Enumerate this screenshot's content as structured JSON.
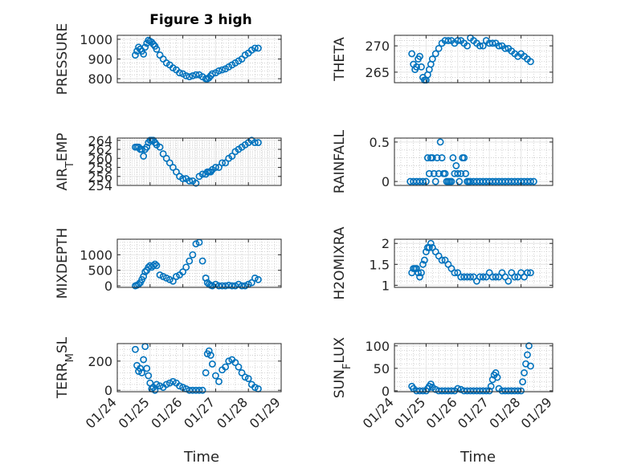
{
  "figure": {
    "title": "Figure 3 high",
    "marker_color": "#0072bd",
    "xlabel_left": "Time",
    "xlabel_right": "Time"
  },
  "chart_data": [
    {
      "type": "scatter",
      "name": "PRESSURE",
      "ylabel": "PRESSURE",
      "xlim": [
        0,
        5
      ],
      "ylim": [
        780,
        1020
      ],
      "yticks": [
        800,
        900,
        1000
      ],
      "xticks": [
        "01/24",
        "01/25",
        "01/26",
        "01/27",
        "01/28",
        "01/29"
      ],
      "x": [
        0.55,
        0.6,
        0.65,
        0.7,
        0.75,
        0.8,
        0.85,
        0.9,
        0.95,
        1.0,
        1.05,
        1.1,
        1.15,
        1.2,
        1.3,
        1.4,
        1.5,
        1.6,
        1.7,
        1.8,
        1.9,
        2.0,
        2.1,
        2.2,
        2.3,
        2.4,
        2.5,
        2.6,
        2.7,
        2.75,
        2.8,
        2.85,
        2.9,
        3.0,
        3.1,
        3.2,
        3.3,
        3.4,
        3.5,
        3.6,
        3.7,
        3.8,
        3.9,
        4.0,
        4.1,
        4.2,
        4.3
      ],
      "y": [
        920,
        940,
        960,
        950,
        940,
        925,
        960,
        980,
        995,
        990,
        985,
        975,
        965,
        950,
        920,
        900,
        880,
        870,
        855,
        845,
        830,
        825,
        815,
        810,
        815,
        820,
        820,
        810,
        800,
        800,
        805,
        815,
        825,
        830,
        840,
        845,
        850,
        860,
        870,
        880,
        890,
        900,
        920,
        930,
        945,
        955,
        955
      ]
    },
    {
      "type": "scatter",
      "name": "THETA",
      "ylabel": "THETA",
      "xlim": [
        0,
        5
      ],
      "ylim": [
        263,
        272
      ],
      "yticks": [
        265,
        270
      ],
      "xticks": [
        "01/24",
        "01/25",
        "01/26",
        "01/27",
        "01/28",
        "01/29"
      ],
      "x": [
        0.55,
        0.6,
        0.65,
        0.7,
        0.75,
        0.8,
        0.85,
        0.9,
        0.95,
        1.0,
        1.05,
        1.1,
        1.15,
        1.2,
        1.3,
        1.4,
        1.5,
        1.6,
        1.7,
        1.8,
        1.9,
        2.0,
        2.1,
        2.2,
        2.3,
        2.4,
        2.5,
        2.6,
        2.7,
        2.8,
        2.9,
        3.0,
        3.1,
        3.2,
        3.3,
        3.4,
        3.5,
        3.6,
        3.7,
        3.8,
        3.9,
        4.0,
        4.1,
        4.2,
        4.3
      ],
      "y": [
        268.5,
        266.5,
        265.5,
        266,
        267.5,
        268,
        266,
        264,
        263.5,
        263.5,
        264.5,
        265.5,
        266.5,
        267.5,
        268.5,
        269.5,
        270.5,
        271,
        271,
        271,
        270.5,
        271,
        271,
        270.5,
        270,
        271.5,
        271,
        270.5,
        270,
        270,
        271,
        270.5,
        270.5,
        270.5,
        270,
        270,
        269.5,
        269.5,
        269,
        268.5,
        268,
        268.5,
        268,
        267.5,
        267
      ]
    },
    {
      "type": "scatter",
      "name": "AIR_TEMP",
      "ylabel": "AIR_TEMP",
      "xlim": [
        0,
        5
      ],
      "ylim": [
        254,
        264.5
      ],
      "yticks": [
        254,
        256,
        258,
        260,
        262,
        264
      ],
      "xticks": [
        "01/24",
        "01/25",
        "01/26",
        "01/27",
        "01/28",
        "01/29"
      ],
      "x": [
        0.55,
        0.6,
        0.65,
        0.7,
        0.75,
        0.8,
        0.85,
        0.9,
        0.95,
        1.0,
        1.05,
        1.1,
        1.15,
        1.2,
        1.3,
        1.4,
        1.5,
        1.6,
        1.7,
        1.8,
        1.9,
        2.0,
        2.1,
        2.2,
        2.3,
        2.4,
        2.5,
        2.6,
        2.7,
        2.75,
        2.8,
        2.85,
        2.9,
        3.0,
        3.1,
        3.2,
        3.3,
        3.4,
        3.5,
        3.6,
        3.7,
        3.8,
        3.9,
        4.0,
        4.1,
        4.2,
        4.3
      ],
      "y": [
        262.5,
        262.5,
        262.5,
        262,
        262,
        260.5,
        262,
        262.5,
        263.5,
        264,
        264,
        264,
        263.5,
        263,
        262.5,
        261,
        260,
        259,
        258,
        257,
        256,
        255.5,
        255.5,
        255,
        255,
        254.5,
        256,
        256.5,
        256.5,
        257,
        257,
        257,
        257.5,
        258,
        258,
        259,
        259,
        260,
        260.5,
        261.5,
        262,
        262.5,
        263,
        263.5,
        264,
        263.5,
        263.5
      ]
    },
    {
      "type": "scatter",
      "name": "RAINFALL",
      "ylabel": "RAINFALL",
      "xlim": [
        0,
        5
      ],
      "ylim": [
        -0.05,
        0.55
      ],
      "yticks": [
        0,
        0.5
      ],
      "xticks": [
        "01/24",
        "01/25",
        "01/26",
        "01/27",
        "01/28",
        "01/29"
      ],
      "x": [
        0.5,
        0.6,
        0.7,
        0.8,
        0.9,
        1.0,
        1.05,
        1.1,
        1.15,
        1.2,
        1.25,
        1.3,
        1.35,
        1.4,
        1.45,
        1.5,
        1.55,
        1.6,
        1.65,
        1.7,
        1.75,
        1.8,
        1.85,
        1.9,
        1.95,
        2.0,
        2.05,
        2.1,
        2.15,
        2.2,
        2.25,
        2.3,
        2.35,
        2.4,
        2.5,
        2.6,
        2.7,
        2.8,
        2.9,
        3.0,
        3.1,
        3.2,
        3.3,
        3.4,
        3.5,
        3.6,
        3.7,
        3.8,
        3.9,
        4.0,
        4.1,
        4.2,
        4.3,
        4.4
      ],
      "y": [
        0,
        0,
        0,
        0,
        0,
        0,
        0.3,
        0.1,
        0.3,
        0.3,
        0.1,
        0,
        0.3,
        0.1,
        0.5,
        0.3,
        0.1,
        0.1,
        0,
        0,
        0,
        0,
        0.3,
        0.1,
        0.2,
        0.1,
        0,
        0.1,
        0.3,
        0.3,
        0.1,
        0,
        0,
        0,
        0,
        0,
        0,
        0,
        0,
        0,
        0,
        0,
        0,
        0,
        0,
        0,
        0,
        0,
        0,
        0,
        0,
        0,
        0,
        0
      ]
    },
    {
      "type": "scatter",
      "name": "MIXDEPTH",
      "ylabel": "MIXDEPTH",
      "xlim": [
        0,
        5
      ],
      "ylim": [
        -50,
        1500
      ],
      "yticks": [
        0,
        500,
        1000
      ],
      "xticks": [
        "01/24",
        "01/25",
        "01/26",
        "01/27",
        "01/28",
        "01/29"
      ],
      "x": [
        0.55,
        0.6,
        0.65,
        0.7,
        0.75,
        0.8,
        0.85,
        0.9,
        0.95,
        1.0,
        1.05,
        1.1,
        1.15,
        1.2,
        1.3,
        1.4,
        1.5,
        1.6,
        1.7,
        1.8,
        1.9,
        2.0,
        2.1,
        2.2,
        2.3,
        2.4,
        2.5,
        2.6,
        2.7,
        2.75,
        2.8,
        2.85,
        2.9,
        3.0,
        3.1,
        3.2,
        3.3,
        3.4,
        3.5,
        3.6,
        3.7,
        3.8,
        3.9,
        4.0,
        4.1,
        4.2,
        4.3
      ],
      "y": [
        0,
        20,
        50,
        100,
        200,
        300,
        450,
        500,
        600,
        650,
        600,
        650,
        700,
        650,
        350,
        300,
        250,
        200,
        150,
        300,
        350,
        450,
        600,
        800,
        1000,
        1350,
        1400,
        800,
        250,
        100,
        50,
        20,
        0,
        50,
        0,
        0,
        0,
        20,
        0,
        0,
        50,
        0,
        0,
        50,
        100,
        250,
        200
      ]
    },
    {
      "type": "scatter",
      "name": "H2OMIXRA",
      "ylabel": "H2OMIXRA",
      "xlim": [
        0,
        5
      ],
      "ylim": [
        0.95,
        2.1
      ],
      "yticks": [
        1,
        1.5,
        2
      ],
      "xticks": [
        "01/24",
        "01/25",
        "01/26",
        "01/27",
        "01/28",
        "01/29"
      ],
      "x": [
        0.55,
        0.6,
        0.65,
        0.7,
        0.75,
        0.8,
        0.85,
        0.9,
        0.95,
        1.0,
        1.05,
        1.1,
        1.15,
        1.2,
        1.3,
        1.4,
        1.5,
        1.6,
        1.7,
        1.8,
        1.9,
        2.0,
        2.1,
        2.2,
        2.3,
        2.4,
        2.5,
        2.6,
        2.7,
        2.8,
        2.9,
        3.0,
        3.1,
        3.2,
        3.3,
        3.4,
        3.5,
        3.6,
        3.7,
        3.8,
        3.9,
        4.0,
        4.1,
        4.2,
        4.3
      ],
      "y": [
        1.3,
        1.4,
        1.4,
        1.4,
        1.3,
        1.2,
        1.3,
        1.5,
        1.6,
        1.8,
        1.9,
        1.9,
        2.0,
        1.9,
        1.8,
        1.7,
        1.6,
        1.6,
        1.5,
        1.4,
        1.3,
        1.3,
        1.2,
        1.2,
        1.2,
        1.2,
        1.2,
        1.1,
        1.2,
        1.2,
        1.2,
        1.3,
        1.2,
        1.2,
        1.2,
        1.3,
        1.2,
        1.1,
        1.3,
        1.2,
        1.2,
        1.3,
        1.2,
        1.3,
        1.3
      ]
    },
    {
      "type": "scatter",
      "name": "TERR_MSL",
      "ylabel": "TERR_MSL",
      "xlim": [
        0,
        5
      ],
      "ylim": [
        -10,
        320
      ],
      "yticks": [
        0,
        200
      ],
      "xticks": [
        "01/24",
        "01/25",
        "01/26",
        "01/27",
        "01/28",
        "01/29"
      ],
      "x": [
        0.55,
        0.6,
        0.65,
        0.7,
        0.75,
        0.8,
        0.85,
        0.9,
        0.95,
        1.0,
        1.05,
        1.1,
        1.15,
        1.2,
        1.3,
        1.4,
        1.5,
        1.6,
        1.7,
        1.8,
        1.9,
        2.0,
        2.1,
        2.2,
        2.3,
        2.4,
        2.5,
        2.6,
        2.7,
        2.75,
        2.8,
        2.85,
        2.9,
        3.0,
        3.1,
        3.2,
        3.3,
        3.4,
        3.5,
        3.6,
        3.7,
        3.8,
        3.9,
        4.0,
        4.1,
        4.2,
        4.3
      ],
      "y": [
        280,
        170,
        130,
        150,
        120,
        210,
        300,
        150,
        100,
        50,
        10,
        20,
        0,
        40,
        30,
        20,
        40,
        50,
        60,
        50,
        30,
        20,
        10,
        0,
        0,
        0,
        0,
        0,
        120,
        250,
        270,
        240,
        180,
        100,
        60,
        140,
        160,
        200,
        210,
        190,
        160,
        120,
        90,
        80,
        40,
        20,
        10
      ]
    },
    {
      "type": "scatter",
      "name": "SUN_FLUX",
      "ylabel": "SUN_FLUX",
      "xlim": [
        0,
        5
      ],
      "ylim": [
        -2,
        105
      ],
      "yticks": [
        0,
        50,
        100
      ],
      "xticks": [
        "01/24",
        "01/25",
        "01/26",
        "01/27",
        "01/28",
        "01/29"
      ],
      "x": [
        0.55,
        0.6,
        0.7,
        0.8,
        0.9,
        1.0,
        1.05,
        1.1,
        1.15,
        1.2,
        1.3,
        1.4,
        1.5,
        1.6,
        1.7,
        1.8,
        1.9,
        2.0,
        2.1,
        2.2,
        2.3,
        2.4,
        2.5,
        2.6,
        2.7,
        2.8,
        2.9,
        3.0,
        3.05,
        3.1,
        3.15,
        3.2,
        3.25,
        3.3,
        3.4,
        3.5,
        3.6,
        3.7,
        3.8,
        3.9,
        4.0,
        4.05,
        4.1,
        4.15,
        4.2,
        4.25,
        4.3
      ],
      "y": [
        10,
        5,
        0,
        0,
        0,
        0,
        5,
        10,
        15,
        8,
        3,
        0,
        0,
        0,
        0,
        0,
        0,
        5,
        3,
        0,
        0,
        0,
        0,
        0,
        0,
        0,
        0,
        0,
        10,
        25,
        35,
        40,
        30,
        5,
        0,
        0,
        0,
        0,
        0,
        0,
        0,
        20,
        40,
        60,
        80,
        100,
        55
      ]
    }
  ]
}
